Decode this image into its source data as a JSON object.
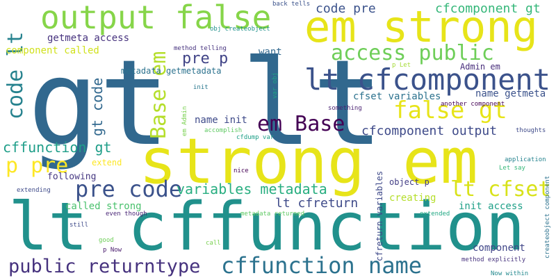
{
  "words": [
    {
      "text": "gt lt",
      "color": "#31688e"
    },
    {
      "text": "strong em",
      "color": "#e7e419"
    },
    {
      "text": "lt cffunction",
      "color": "#21918c"
    },
    {
      "text": "em strong",
      "color": "#e7e419"
    },
    {
      "text": "output false",
      "color": "#86d549"
    },
    {
      "text": "lt cfcomponent",
      "color": "#3b528b"
    },
    {
      "text": "access public",
      "color": "#6ece58"
    },
    {
      "text": "false gt",
      "color": "#e7e419"
    },
    {
      "text": "em Base",
      "color": "#440154"
    },
    {
      "text": "pre code",
      "color": "#3b528b"
    },
    {
      "text": "cffunction name",
      "color": "#2c728e"
    },
    {
      "text": "public returntype",
      "color": "#46327e"
    },
    {
      "text": "code lt",
      "color": "#26828e"
    },
    {
      "text": "Base em",
      "color": "#b5de2b"
    },
    {
      "text": "p pre",
      "color": "#fde725"
    },
    {
      "text": "cffunction gt",
      "color": "#1f9e89"
    },
    {
      "text": "lt cfset",
      "color": "#d8e219"
    },
    {
      "text": "variables metadata",
      "color": "#28ae80"
    },
    {
      "text": "lt cfreturn",
      "color": "#3e4a89"
    },
    {
      "text": "cfcomponent output",
      "color": "#3e4a89"
    },
    {
      "text": "code pre",
      "color": "#3b528b"
    },
    {
      "text": "cfcomponent gt",
      "color": "#35b779"
    },
    {
      "text": "pre p",
      "color": "#414487"
    },
    {
      "text": "gt code",
      "color": "#31688e"
    },
    {
      "text": "getmeta access",
      "color": "#46327e"
    },
    {
      "text": "component called",
      "color": "#d0e11c"
    },
    {
      "text": "metadata getmetadata",
      "color": "#2c728e"
    },
    {
      "text": "want",
      "color": "#31688e"
    },
    {
      "text": "name init",
      "color": "#3e4a89"
    },
    {
      "text": "cfset variables",
      "color": "#2c728e"
    },
    {
      "text": "name getmeta",
      "color": "#3b528b"
    },
    {
      "text": "Admin em",
      "color": "#472d7b"
    },
    {
      "text": "called strong",
      "color": "#4ac16d"
    },
    {
      "text": "init access",
      "color": "#1fa088"
    },
    {
      "text": "creating",
      "color": "#b5de2b"
    },
    {
      "text": "object p",
      "color": "#433e85"
    },
    {
      "text": "component",
      "color": "#404688"
    },
    {
      "text": "following",
      "color": "#453781"
    },
    {
      "text": "extend",
      "color": "#fde725"
    },
    {
      "text": "cfreturn variables",
      "color": "#3e4989"
    },
    {
      "text": "back tells",
      "color": "#3b528b"
    },
    {
      "text": "obj createobject",
      "color": "#21918c"
    },
    {
      "text": "method telling",
      "color": "#46327e"
    },
    {
      "text": "p Let",
      "color": "#a5db36"
    },
    {
      "text": "init",
      "color": "#2a788e"
    },
    {
      "text": "var obj",
      "color": "#20a486"
    },
    {
      "text": "something",
      "color": "#481f70"
    },
    {
      "text": "another component",
      "color": "#440154"
    },
    {
      "text": "thoughts",
      "color": "#3e4a89"
    },
    {
      "text": "em Admin",
      "color": "#7ad151"
    },
    {
      "text": "accomplish",
      "color": "#5ec962"
    },
    {
      "text": "cfdump var",
      "color": "#1fa088"
    },
    {
      "text": "application",
      "color": "#25838e"
    },
    {
      "text": "Let say",
      "color": "#35b779"
    },
    {
      "text": "createobject component",
      "color": "#2c728e"
    },
    {
      "text": "nice",
      "color": "#440154"
    },
    {
      "text": "extending",
      "color": "#3e4a89"
    },
    {
      "text": "even though",
      "color": "#482475"
    },
    {
      "text": "metadata returned",
      "color": "#5ec962"
    },
    {
      "text": "extended",
      "color": "#22a884"
    },
    {
      "text": "still",
      "color": "#3e4a89"
    },
    {
      "text": "good",
      "color": "#6ece58"
    },
    {
      "text": "call",
      "color": "#7ad151"
    },
    {
      "text": "p Now",
      "color": "#481a6c"
    },
    {
      "text": "method explicitly",
      "color": "#46327e"
    },
    {
      "text": "Now within",
      "color": "#23898e"
    }
  ]
}
